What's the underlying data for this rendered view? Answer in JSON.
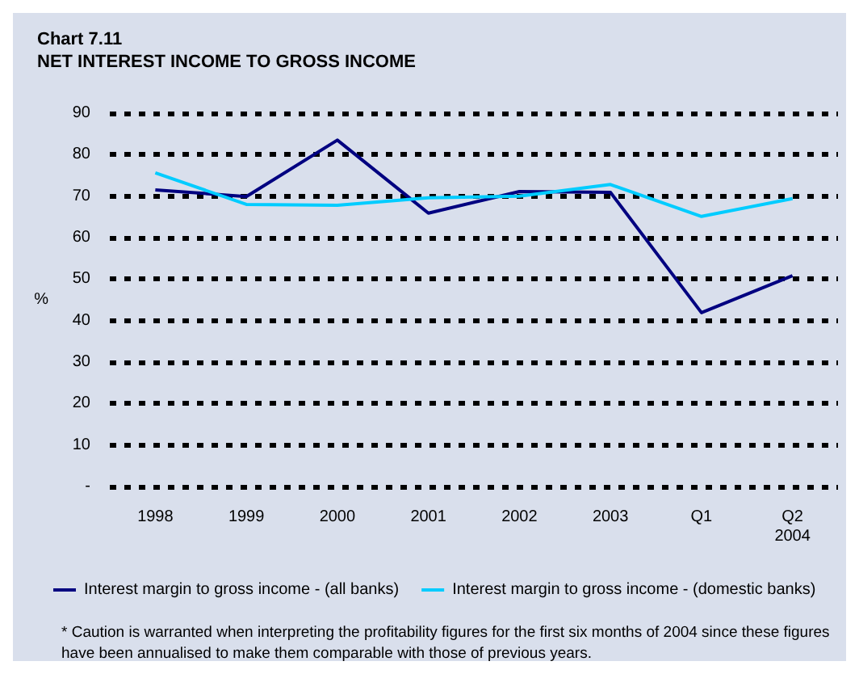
{
  "chart_data": {
    "type": "line",
    "title": "Chart 7.11",
    "subtitle": "NET INTEREST INCOME TO GROSS INCOME",
    "ylabel": "%",
    "categories": [
      "1998",
      "1999",
      "2000",
      "2001",
      "2002",
      "2003",
      "Q1",
      "Q2"
    ],
    "series": [
      {
        "name": "Interest margin to gross income - (all banks)",
        "color": "#000080",
        "values": [
          71.5,
          69.9,
          83.5,
          65.9,
          71.1,
          70.9,
          41.9,
          50.8
        ]
      },
      {
        "name": "Interest margin to gross income - (domestic banks)",
        "color": "#00ccff",
        "values": [
          75.6,
          68.0,
          67.8,
          69.6,
          70.0,
          72.8,
          65.1,
          69.4
        ]
      }
    ],
    "ylim": [
      0,
      90
    ],
    "yticks": [
      {
        "value": 0,
        "label": "-"
      },
      10,
      20,
      30,
      40,
      50,
      60,
      70,
      80,
      90
    ],
    "grid": "y",
    "line_style": "solid",
    "marker": "none",
    "legend": "bottom",
    "annotations": [
      "2004",
      "* Caution is warranted when interpreting the profitability figures for the first six months of 2004 since these figures have been annualised to make them comparable with those of previous years."
    ]
  }
}
